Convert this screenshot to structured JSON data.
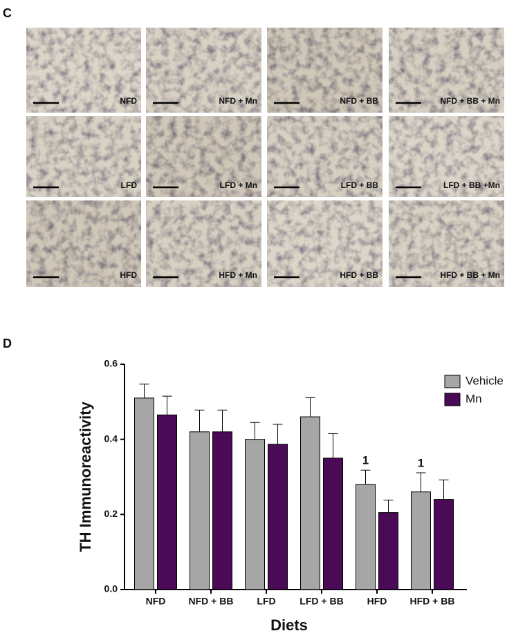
{
  "panel_c": {
    "label": "C",
    "images": [
      "NFD",
      "NFD + Mn",
      "NFD + BB",
      "NFD + BB + Mn",
      "LFD",
      "LFD + Mn",
      "LFD + BB",
      "LFD + BB +Mn",
      "HFD",
      "HFD + Mn",
      "HFD + BB",
      "HFD + BB + Mn"
    ]
  },
  "chart_data": {
    "type": "bar",
    "panel_label": "D",
    "ylabel": "TH Immunoreactivity",
    "xlabel": "Diets",
    "categories": [
      "NFD",
      "NFD + BB",
      "LFD",
      "LFD + BB",
      "HFD",
      "HFD + BB"
    ],
    "series": [
      {
        "name": "Vehicle",
        "color": "#a6a6a6",
        "values": [
          0.51,
          0.42,
          0.4,
          0.46,
          0.28,
          0.26
        ],
        "errors": [
          0.037,
          0.058,
          0.045,
          0.051,
          0.038,
          0.051
        ],
        "annotations": [
          null,
          null,
          null,
          null,
          "1",
          "1"
        ]
      },
      {
        "name": "Mn",
        "color": "#4b0a55",
        "values": [
          0.465,
          0.42,
          0.387,
          0.35,
          0.205,
          0.24
        ],
        "errors": [
          0.05,
          0.058,
          0.053,
          0.065,
          0.033,
          0.052
        ]
      }
    ],
    "ylim": [
      0,
      0.6
    ],
    "yticks": [
      {
        "value": 0,
        "label": "0.0"
      },
      0.2,
      0.4,
      0.6
    ],
    "legend": "upper right"
  }
}
